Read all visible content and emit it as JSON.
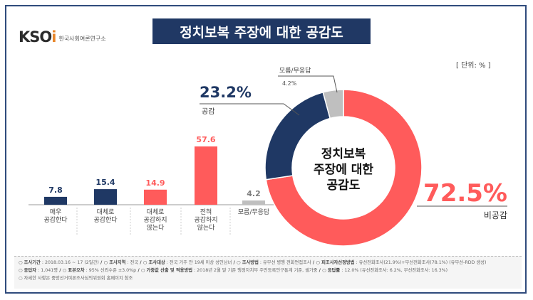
{
  "logo": {
    "mark_main": "KSO",
    "mark_accent": "i",
    "sub": "한국사회여론연구소"
  },
  "title": "정치보복 주장에 대한 공감도",
  "unit": "[ 단위: % ]",
  "chart_data": [
    {
      "type": "bar",
      "categories": [
        "매우\n공감한다",
        "대체로\n공감한다",
        "대체로\n공감하지\n않는다",
        "전혀\n공감하지\n않는다",
        "모름/무응답"
      ],
      "values": [
        7.8,
        15.4,
        14.9,
        57.6,
        4.2
      ],
      "value_labels": [
        "7.8",
        "15.4",
        "14.9",
        "57.6",
        "4.2"
      ],
      "colors": [
        "#1f3864",
        "#1f3864",
        "#ff5b5b",
        "#ff5b5b",
        "#bfbfbf"
      ],
      "ylim": [
        0,
        60
      ]
    },
    {
      "type": "pie",
      "center_label": [
        "정치보복",
        "주장에 대한",
        "공감도"
      ],
      "slices": [
        {
          "label": "비공감",
          "value": 72.5,
          "value_label": "72.5%",
          "color": "#ff5b5b"
        },
        {
          "label": "공감",
          "value": 23.2,
          "value_label": "23.2%",
          "color": "#1f3864"
        },
        {
          "label": "모름/무응답",
          "value": 4.2,
          "value_label": "4.2%",
          "color": "#bfbfbf"
        }
      ]
    }
  ],
  "footer": {
    "line1": [
      {
        "key": "조사기간",
        "val": " : 2018.03.16 ~ 17 (2일간)"
      },
      {
        "key": "조사지역",
        "val": " : 전국"
      },
      {
        "key": "조사대상",
        "val": " : 전국 거주 만 19세 이상 성인남녀"
      },
      {
        "key": "조사방법",
        "val": " : 유무선 병행 전화면접조사"
      },
      {
        "key": "피조사자선정방법",
        "val": " : 유선전화조사(21.9%)+무선전화조사(78.1%) (유무선-RDD 생성)"
      }
    ],
    "line2": [
      {
        "key": "응답자",
        "val": " : 1,041명"
      },
      {
        "key": "표본오차",
        "val": " : 95% 신뢰수준 ±3.0%p"
      },
      {
        "key": "가중값 산출 및 적용방법",
        "val": " : 2018년 2월 말 기준 행정자치부 주민등록인구통계 기준, 셀가중"
      },
      {
        "key": "응답률",
        "val": " : 12.0% (유선전화조사: 6.2%, 무선전화조사: 16.3%)"
      }
    ],
    "line3": "○ 자세한 사항은 중앙선거여론조사심의위원회 홈페이지 참조"
  }
}
